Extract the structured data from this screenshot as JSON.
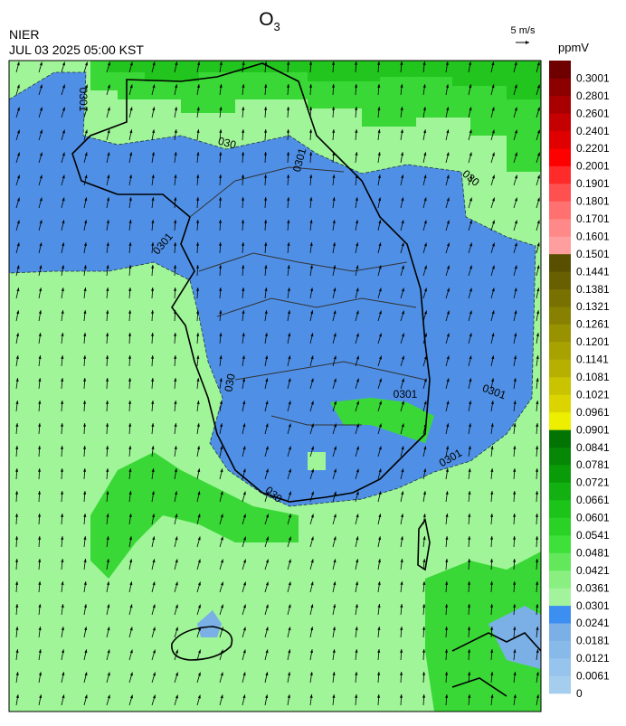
{
  "header": {
    "title": {
      "main": "O",
      "sub": "3"
    },
    "agency": "NIER",
    "datetime": "JUL 03 2025 05:00 KST",
    "wind_scale": "5 m/s",
    "unit": "ppmV"
  },
  "colorbar": {
    "ticks": [
      0,
      0.0061,
      0.0121,
      0.0181,
      0.0241,
      0.0301,
      0.0361,
      0.0421,
      0.0481,
      0.0541,
      0.0601,
      0.0661,
      0.0721,
      0.0781,
      0.0841,
      0.0901,
      0.0961,
      0.1021,
      0.1081,
      0.1141,
      0.1201,
      0.1261,
      0.1321,
      0.1381,
      0.1441,
      0.1501,
      0.1601,
      0.1701,
      0.1801,
      0.1901,
      0.2001,
      0.2201,
      0.2401,
      0.2601,
      0.2801,
      0.3001
    ],
    "colors": [
      "#a5cdee",
      "#96c4ec",
      "#88bae9",
      "#7ab0e6",
      "#3c8ef0",
      "#a2f39c",
      "#88ef80",
      "#62e85a",
      "#3ee03a",
      "#2ad226",
      "#1cc41a",
      "#12b010",
      "#0a9c08",
      "#068806",
      "#037403",
      "#eeee00",
      "#dcd400",
      "#cac400",
      "#b8b000",
      "#a8a200",
      "#989200",
      "#888000",
      "#787000",
      "#686000",
      "#585000",
      "#ff9e9e",
      "#ff8888",
      "#ff7070",
      "#ff5050",
      "#ff2a2a",
      "#ff0000",
      "#e00000",
      "#c40000",
      "#a80000",
      "#8c0000",
      "#6e0000"
    ]
  },
  "contour_labels": [
    "0301",
    "030",
    "0301",
    "030",
    "0301",
    "030",
    "0301",
    "0301",
    "0301",
    "030"
  ]
}
